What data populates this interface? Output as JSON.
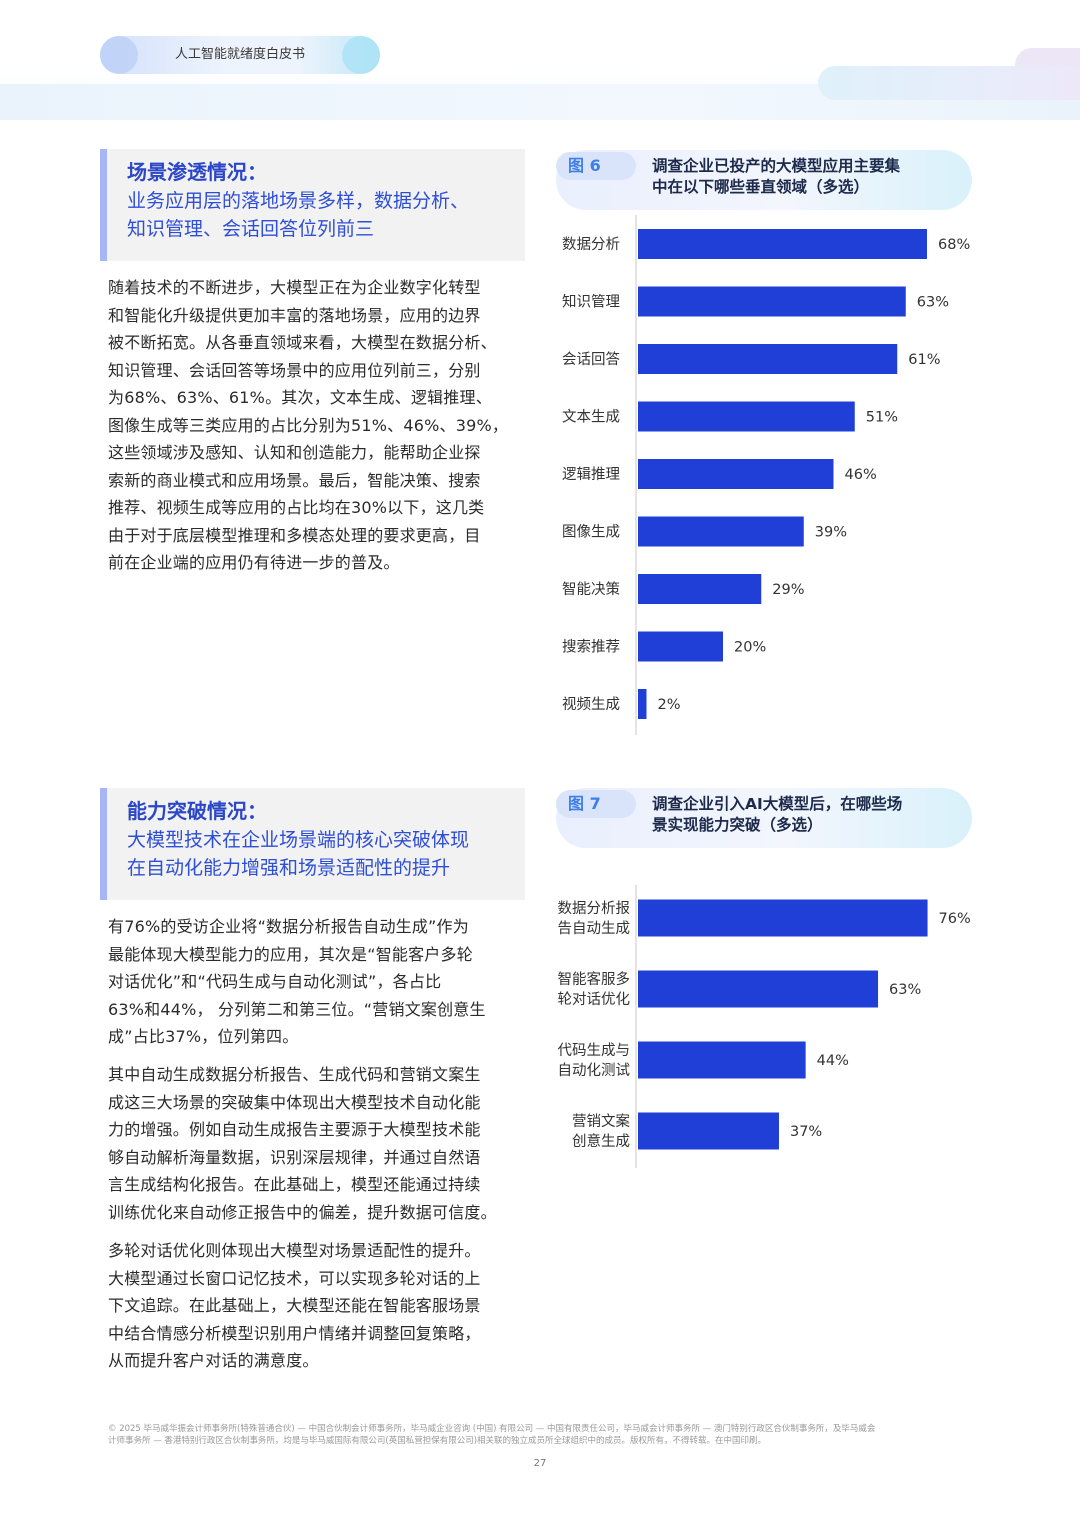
{
  "header": {
    "title": "人工智能就绪度白皮书"
  },
  "section1": {
    "title": "场景渗透情况：",
    "subtitle_lines": [
      "业务应用层的落地场景多样，数据分析、",
      "知识管理、会话回答位列前三"
    ],
    "body_lines": [
      "随着技术的不断进步，大模型正在为企业数字化转型",
      "和智能化升级提供更加丰富的落地场景，应用的边界",
      "被不断拓宽。从各垂直领域来看，大模型在数据分析、",
      "知识管理、会话回答等场景中的应用位列前三，分别",
      "为68%、63%、61%。其次，文本生成、逻辑推理、",
      "图像生成等三类应用的占比分别为51%、46%、39%，",
      "这些领域涉及感知、认知和创造能力，能帮助企业探",
      "索新的商业模式和应用场景。最后，智能决策、搜索",
      "推荐、视频生成等应用的占比均在30%以下，这几类",
      "由于对于底层模型推理和多模态处理的要求更高，目",
      "前在企业端的应用仍有待进一步的普及。"
    ]
  },
  "figure6": {
    "label": "图 6",
    "title_lines": [
      "调查企业已投产的大模型应用主要集",
      "中在以下哪些垂直领域（多选）"
    ]
  },
  "section2": {
    "title": "能力突破情况：",
    "subtitle_lines": [
      "大模型技术在企业场景端的核心突破体现",
      "在自动化能力增强和场景适配性的提升"
    ],
    "para1_lines": [
      "有76%的受访企业将“数据分析报告自动生成”作为",
      "最能体现大模型能力的应用，其次是“智能客户多轮",
      "对话优化”和“代码生成与自动化测试”，各占比",
      "63%和44%， 分列第二和第三位。“营销文案创意生",
      "成”占比37%，位列第四。"
    ],
    "para2_lines": [
      "其中自动生成数据分析报告、生成代码和营销文案生",
      "成这三大场景的突破集中体现出大模型技术自动化能",
      "力的增强。例如自动生成报告主要源于大模型技术能",
      "够自动解析海量数据，识别深层规律，并通过自然语",
      "言生成结构化报告。在此基础上，模型还能通过持续",
      "训练优化来自动修正报告中的偏差，提升数据可信度。"
    ],
    "para3_lines": [
      "多轮对话优化则体现出大模型对场景适配性的提升。",
      "大模型通过长窗口记忆技术，可以实现多轮对话的上",
      "下文追踪。在此基础上，大模型还能在智能客服场景",
      "中结合情感分析模型识别用户情绪并调整回复策略，",
      "从而提升客户对话的满意度。"
    ]
  },
  "figure7": {
    "label": "图 7",
    "title_lines": [
      "调查企业引入AI大模型后，在哪些场",
      "景实现能力突破（多选）"
    ]
  },
  "chart_data": [
    {
      "type": "bar",
      "orientation": "horizontal",
      "title": "调查企业已投产的大模型应用主要集中在以下哪些垂直领域（多选）",
      "categories": [
        "数据分析",
        "知识管理",
        "会话回答",
        "文本生成",
        "逻辑推理",
        "图像生成",
        "智能决策",
        "搜索推荐",
        "视频生成"
      ],
      "values": [
        68,
        63,
        61,
        51,
        46,
        39,
        29,
        20,
        2
      ],
      "value_labels": [
        "68%",
        "63%",
        "61%",
        "51%",
        "46%",
        "39%",
        "29%",
        "20%",
        "2%"
      ],
      "unit": "%",
      "bar_color": "#1f3fd6"
    },
    {
      "type": "bar",
      "orientation": "horizontal",
      "title": "调查企业引入AI大模型后，在哪些场景实现能力突破（多选）",
      "categories": [
        [
          "数据分析报",
          "告自动生成"
        ],
        [
          "智能客服多",
          "轮对话优化"
        ],
        [
          "代码生成与",
          "自动化测试"
        ],
        [
          "营销文案",
          "创意生成"
        ]
      ],
      "values": [
        76,
        63,
        44,
        37
      ],
      "value_labels": [
        "76%",
        "63%",
        "44%",
        "37%"
      ],
      "unit": "%",
      "bar_color": "#1f3fd6"
    }
  ],
  "footer": {
    "legal_lines": [
      "© 2025 毕马威华振会计师事务所(特殊普通合伙) — 中国合伙制会计师事务所，毕马威企业咨询 (中国) 有限公司 — 中国有限责任公司，毕马威会计师事务所 — 澳门特别行政区合伙制事务所，及毕马威会",
      "计师事务所 — 香港特别行政区合伙制事务所，均是与毕马威国际有限公司(英国私营担保有限公司)相关联的独立成员所全球组织中的成员。版权所有，不得转载。在中国印刷。"
    ],
    "page_number": "27"
  }
}
